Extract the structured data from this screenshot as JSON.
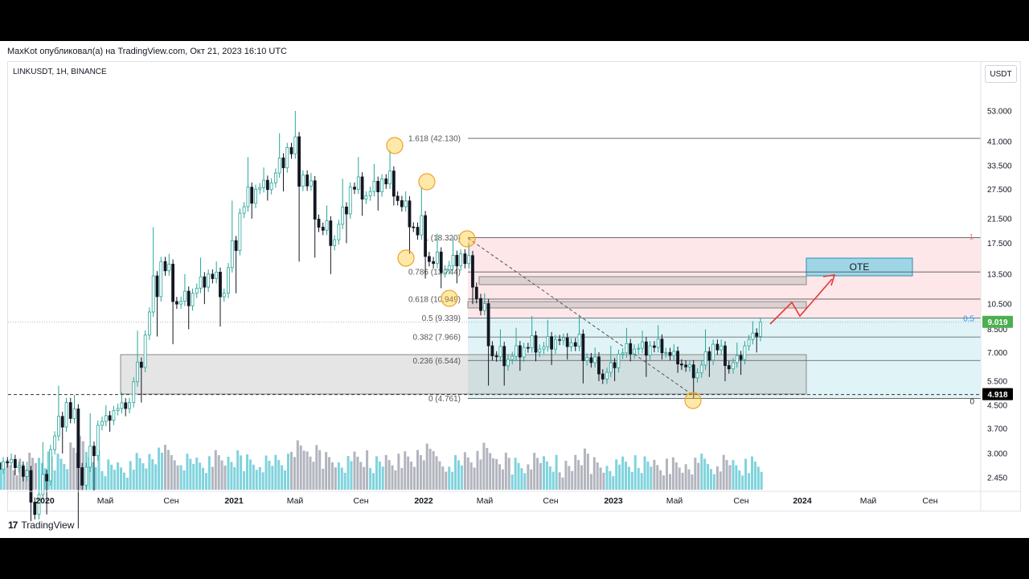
{
  "header": {
    "attribution": "MaxKot опубликовал(а) на TradingView.com, Окт 21, 2023 16:10 UTC"
  },
  "symbol_info": "LINKUSDT, 1H, BINANCE",
  "currency": "USDT",
  "footer": {
    "logo_mark": "17",
    "brand": "TradingView"
  },
  "colors": {
    "up": "#26a69a",
    "down": "#131722",
    "volume_up": "#7fd3dd",
    "volume_down": "#b2b5be",
    "premium_zone": "#fde7e9",
    "discount_zone": "#e0f4f8",
    "last_price_bg": "#4caf50",
    "fib_low_label_bg": "#000000",
    "projection_arrow": "#e53935"
  },
  "chart_data": {
    "type": "candlestick",
    "scale": "log",
    "y_ticks": [
      "53.000",
      "41.000",
      "33.500",
      "27.500",
      "21.500",
      "17.500",
      "13.500",
      "10.500",
      "8.500",
      "7.000",
      "5.500",
      "4.500",
      "3.700",
      "3.000",
      "2.450"
    ],
    "x_ticks": [
      "2020",
      "Май",
      "Сен",
      "2021",
      "Май",
      "Сен",
      "2022",
      "Май",
      "Сен",
      "2023",
      "Май",
      "Сен",
      "2024",
      "Май",
      "Сен"
    ],
    "x_ticks_bold": [
      "2020",
      "2021",
      "2022",
      "2023",
      "2024"
    ],
    "last_price": "9.019",
    "fib_low_price": "4.918",
    "fib_levels": [
      {
        "label": "1.618 (42.130)",
        "value": 42.13
      },
      {
        "label": "1 (18.320)",
        "value": 18.32
      },
      {
        "label": "0.786 (13.744)",
        "value": 13.744
      },
      {
        "label": "0.618 (10.949)",
        "value": 10.949
      },
      {
        "label": "0.5 (9.339)",
        "value": 9.339
      },
      {
        "label": "0.382 (7.966)",
        "value": 7.966
      },
      {
        "label": "0.236 (6.544)",
        "value": 6.544
      },
      {
        "label": "0 (4.761)",
        "value": 4.761
      }
    ],
    "right_markers": {
      "one": "1",
      "half": "0.5",
      "zero": "0"
    },
    "zone_label": "OTE",
    "ohlc_monthly": [
      {
        "t": "2019-09",
        "o": 2.9,
        "h": 3.2,
        "l": 2.45,
        "c": 2.6
      },
      {
        "t": "2019-10",
        "o": 2.6,
        "h": 3.0,
        "l": 2.4,
        "c": 2.8
      },
      {
        "t": "2019-11",
        "o": 2.8,
        "h": 3.0,
        "l": 2.5,
        "c": 2.7
      },
      {
        "t": "2019-12",
        "o": 2.7,
        "h": 2.8,
        "l": 1.7,
        "c": 1.8
      },
      {
        "t": "2020-01",
        "o": 1.8,
        "h": 3.3,
        "l": 1.8,
        "c": 3.1
      },
      {
        "t": "2020-02",
        "o": 3.1,
        "h": 5.3,
        "l": 3.0,
        "c": 4.6
      },
      {
        "t": "2020-03",
        "o": 4.6,
        "h": 4.9,
        "l": 1.6,
        "c": 2.3
      },
      {
        "t": "2020-04",
        "o": 2.3,
        "h": 4.2,
        "l": 2.2,
        "c": 3.8
      },
      {
        "t": "2020-05",
        "o": 3.8,
        "h": 4.5,
        "l": 3.6,
        "c": 4.3
      },
      {
        "t": "2020-06",
        "o": 4.3,
        "h": 5.0,
        "l": 4.1,
        "c": 4.6
      },
      {
        "t": "2020-07",
        "o": 4.6,
        "h": 8.4,
        "l": 4.6,
        "c": 8.1
      },
      {
        "t": "2020-08",
        "o": 8.1,
        "h": 20.0,
        "l": 8.0,
        "c": 15.0
      },
      {
        "t": "2020-09",
        "o": 15.0,
        "h": 16.0,
        "l": 7.5,
        "c": 10.5
      },
      {
        "t": "2020-10",
        "o": 10.5,
        "h": 13.5,
        "l": 8.5,
        "c": 11.5
      },
      {
        "t": "2020-11",
        "o": 11.5,
        "h": 15.5,
        "l": 10.5,
        "c": 13.5
      },
      {
        "t": "2020-12",
        "o": 13.5,
        "h": 15.0,
        "l": 8.7,
        "c": 11.5
      },
      {
        "t": "2021-01",
        "o": 11.5,
        "h": 25.0,
        "l": 11.5,
        "c": 22.5
      },
      {
        "t": "2021-02",
        "o": 22.5,
        "h": 36.0,
        "l": 21.5,
        "c": 27.5
      },
      {
        "t": "2021-03",
        "o": 27.5,
        "h": 33.0,
        "l": 25.0,
        "c": 29.0
      },
      {
        "t": "2021-04",
        "o": 29.0,
        "h": 44.0,
        "l": 27.0,
        "c": 39.0
      },
      {
        "t": "2021-05",
        "o": 39.0,
        "h": 53.0,
        "l": 15.0,
        "c": 31.0
      },
      {
        "t": "2021-06",
        "o": 31.0,
        "h": 31.5,
        "l": 15.5,
        "c": 20.0
      },
      {
        "t": "2021-07",
        "o": 20.0,
        "h": 24.0,
        "l": 13.5,
        "c": 18.0
      },
      {
        "t": "2021-08",
        "o": 18.0,
        "h": 30.0,
        "l": 17.5,
        "c": 28.0
      },
      {
        "t": "2021-09",
        "o": 28.0,
        "h": 36.0,
        "l": 22.0,
        "c": 26.0
      },
      {
        "t": "2021-10",
        "o": 26.0,
        "h": 34.0,
        "l": 23.0,
        "c": 30.0
      },
      {
        "t": "2021-11",
        "o": 30.0,
        "h": 38.0,
        "l": 24.0,
        "c": 25.0
      },
      {
        "t": "2021-12",
        "o": 25.0,
        "h": 27.0,
        "l": 16.0,
        "c": 20.0
      },
      {
        "t": "2022-01",
        "o": 20.0,
        "h": 28.0,
        "l": 13.0,
        "c": 15.0
      },
      {
        "t": "2022-02",
        "o": 15.0,
        "h": 19.0,
        "l": 12.0,
        "c": 14.0
      },
      {
        "t": "2022-03",
        "o": 14.0,
        "h": 18.3,
        "l": 12.5,
        "c": 16.0
      },
      {
        "t": "2022-04",
        "o": 16.0,
        "h": 17.5,
        "l": 10.5,
        "c": 11.0
      },
      {
        "t": "2022-05",
        "o": 11.0,
        "h": 11.5,
        "l": 5.3,
        "c": 6.8
      },
      {
        "t": "2022-06",
        "o": 6.8,
        "h": 8.5,
        "l": 5.3,
        "c": 6.6
      },
      {
        "t": "2022-07",
        "o": 6.6,
        "h": 8.6,
        "l": 6.0,
        "c": 7.3
      },
      {
        "t": "2022-08",
        "o": 7.3,
        "h": 9.5,
        "l": 6.5,
        "c": 7.2
      },
      {
        "t": "2022-09",
        "o": 7.2,
        "h": 9.2,
        "l": 6.3,
        "c": 7.8
      },
      {
        "t": "2022-10",
        "o": 7.8,
        "h": 8.2,
        "l": 6.6,
        "c": 7.6
      },
      {
        "t": "2022-11",
        "o": 7.6,
        "h": 9.6,
        "l": 5.4,
        "c": 6.7
      },
      {
        "t": "2022-12",
        "o": 6.7,
        "h": 7.3,
        "l": 5.5,
        "c": 5.6
      },
      {
        "t": "2023-01",
        "o": 5.6,
        "h": 7.4,
        "l": 5.5,
        "c": 6.9
      },
      {
        "t": "2023-02",
        "o": 6.9,
        "h": 8.6,
        "l": 6.5,
        "c": 7.2
      },
      {
        "t": "2023-03",
        "o": 7.2,
        "h": 8.4,
        "l": 5.7,
        "c": 7.4
      },
      {
        "t": "2023-04",
        "o": 7.4,
        "h": 8.8,
        "l": 6.6,
        "c": 7.0
      },
      {
        "t": "2023-05",
        "o": 7.0,
        "h": 7.5,
        "l": 5.9,
        "c": 6.3
      },
      {
        "t": "2023-06",
        "o": 6.3,
        "h": 6.5,
        "l": 4.76,
        "c": 5.9
      },
      {
        "t": "2023-07",
        "o": 5.9,
        "h": 8.5,
        "l": 5.7,
        "c": 7.5
      },
      {
        "t": "2023-08",
        "o": 7.5,
        "h": 7.8,
        "l": 5.5,
        "c": 6.1
      },
      {
        "t": "2023-09",
        "o": 6.1,
        "h": 7.6,
        "l": 5.8,
        "c": 7.4
      },
      {
        "t": "2023-10",
        "o": 7.4,
        "h": 9.1,
        "l": 7.0,
        "c": 9.019
      }
    ]
  }
}
